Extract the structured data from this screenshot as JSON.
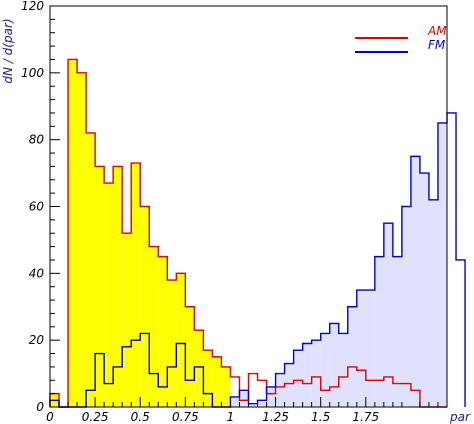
{
  "chart_data": {
    "type": "histogram",
    "xlabel": "par",
    "ylabel": "dN / d(par)",
    "xlim": [
      0,
      2.2
    ],
    "ylim": [
      0,
      120
    ],
    "bin_width": 0.05,
    "x_ticks": [
      0,
      0.25,
      0.5,
      0.75,
      1,
      1.25,
      1.5,
      1.75
    ],
    "x_tick_labels": [
      "0",
      "0.25",
      "0.5",
      "0.75",
      "1",
      "1.25",
      "1.5",
      "1.75"
    ],
    "y_ticks": [
      0,
      20,
      40,
      60,
      80,
      100,
      120
    ],
    "y_tick_labels": [
      "0",
      "20",
      "40",
      "60",
      "80",
      "100",
      "120"
    ],
    "grid": false,
    "legend_position": "top-right",
    "series": [
      {
        "name": "AM",
        "color": "#e00000",
        "fill": "#ffff00",
        "fill_range": [
          0,
          1.0
        ],
        "bin_start": 0,
        "values": [
          4,
          0,
          104,
          100,
          82,
          72,
          67,
          72,
          52,
          73,
          60,
          48,
          45,
          38,
          40,
          30,
          23,
          17,
          15,
          12,
          9,
          2,
          10,
          8,
          4,
          6,
          7,
          8,
          7,
          9,
          5,
          6,
          9,
          12,
          11,
          8,
          8,
          9,
          7,
          7,
          5,
          0,
          0,
          0
        ]
      },
      {
        "name": "FM",
        "color": "#0000cc",
        "fill": "#e0e0ff",
        "fill_range": [
          1.0,
          2.2
        ],
        "bin_start": 0,
        "values": [
          2,
          0,
          0,
          0,
          5,
          16,
          7,
          12,
          18,
          20,
          22,
          10,
          6,
          12,
          19,
          8,
          12,
          4,
          0,
          0,
          3,
          5,
          1,
          2,
          6,
          10,
          13,
          17,
          19,
          20,
          22,
          25,
          22,
          30,
          35,
          35,
          45,
          55,
          45,
          60,
          75,
          70,
          62,
          85,
          88,
          44
        ]
      }
    ]
  }
}
